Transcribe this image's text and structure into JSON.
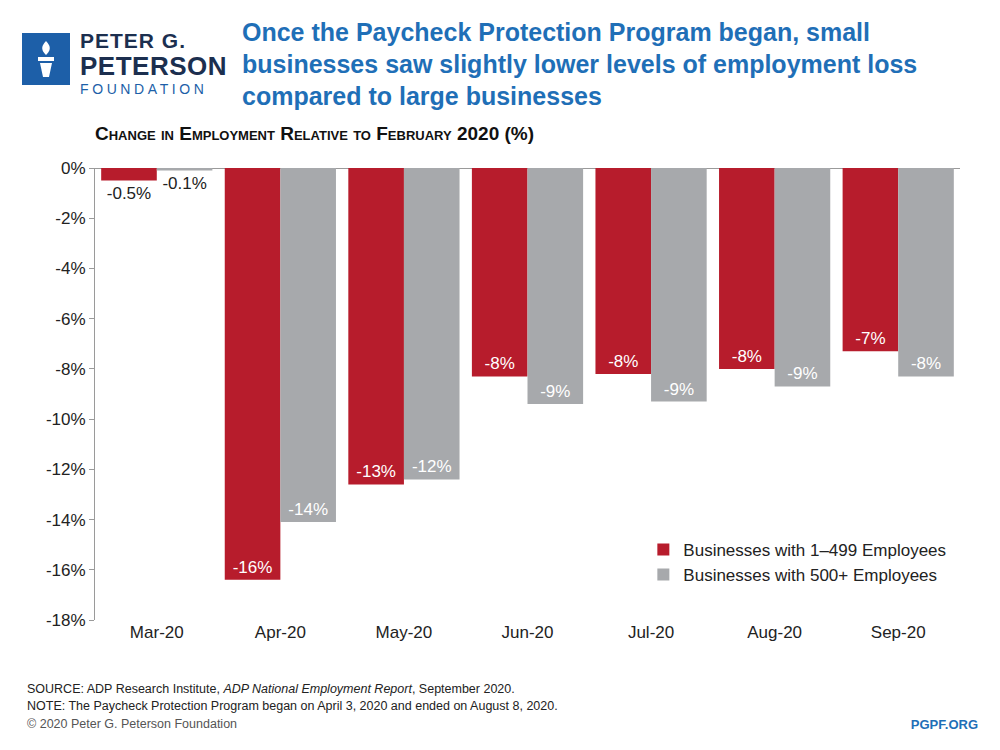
{
  "header": {
    "logo": [
      "PETER G.",
      "PETERSON",
      "FOUNDATION"
    ]
  },
  "chart_data": {
    "type": "bar",
    "title": "Once the Paycheck Protection Program began, small businesses saw slightly lower levels of employment loss compared to large businesses",
    "subtitle": "Change in Employment Relative to February 2020 (%)",
    "categories": [
      "Mar-20",
      "Apr-20",
      "May-20",
      "Jun-20",
      "Jul-20",
      "Aug-20",
      "Sep-20"
    ],
    "series": [
      {
        "name": "Businesses with 1–499 Employees",
        "color": "#b71c2c",
        "values": [
          -0.5,
          -16.4,
          -12.6,
          -8.3,
          -8.2,
          -8.0,
          -7.3
        ],
        "value_labels": [
          "-0.5%",
          "-16%",
          "-13%",
          "-8%",
          "-8%",
          "-8%",
          "-7%"
        ]
      },
      {
        "name": "Businesses with 500+ Employees",
        "color": "#a7a9ac",
        "values": [
          -0.1,
          -14.1,
          -12.4,
          -9.4,
          -9.3,
          -8.7,
          -8.3
        ],
        "value_labels": [
          "-0.1%",
          "-14%",
          "-12%",
          "-9%",
          "-9%",
          "-9%",
          "-8%"
        ]
      }
    ],
    "ylim": [
      -18,
      0
    ],
    "yticks": [
      {
        "value": 0,
        "label": "0%"
      },
      {
        "value": -2,
        "label": "-2%"
      },
      {
        "value": -4,
        "label": "-4%"
      },
      {
        "value": -6,
        "label": "-6%"
      },
      {
        "value": -8,
        "label": "-8%"
      },
      {
        "value": -10,
        "label": "-10%"
      },
      {
        "value": -12,
        "label": "-12%"
      },
      {
        "value": -14,
        "label": "-14%"
      },
      {
        "value": -16,
        "label": "-16%"
      },
      {
        "value": -18,
        "label": "-18%"
      }
    ],
    "grid": false,
    "legend": "bottom right",
    "data_labels": true
  },
  "footer": {
    "source": {
      "prefix": "SOURCE: ADP Research Institute, ",
      "italic": "ADP National Employment Report",
      "suffix": ", September 2020."
    },
    "note": "NOTE: The Paycheck Protection Program began on April 3, 2020 and ended on August 8, 2020.",
    "copyright": "© 2020 Peter G. Peterson Foundation",
    "website": "PGPF.ORG"
  }
}
